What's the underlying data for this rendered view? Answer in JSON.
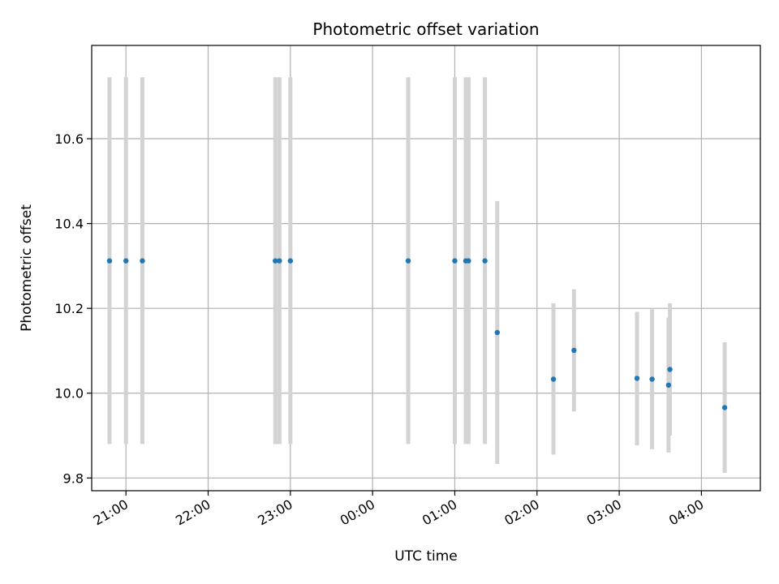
{
  "chart_data": {
    "type": "scatter",
    "title": "Photometric offset variation",
    "xlabel": "UTC time",
    "ylabel": "Photometric offset",
    "x_tick_labels": [
      "21:00",
      "22:00",
      "23:00",
      "00:00",
      "01:00",
      "02:00",
      "03:00",
      "04:00"
    ],
    "y_tick_labels": [
      "9.8",
      "10.0",
      "10.2",
      "10.4",
      "10.6"
    ],
    "xlim": [
      "20:35",
      "04:43"
    ],
    "ylim": [
      9.77,
      10.82
    ],
    "grid": true,
    "colors": {
      "point": "#1f77b4",
      "errorbar": "#d3d3d3",
      "grid": "#b0b0b0"
    },
    "points": [
      {
        "x": "20:48",
        "y": 10.312,
        "err_low": 9.88,
        "err_high": 10.745
      },
      {
        "x": "21:00",
        "y": 10.312,
        "err_low": 9.88,
        "err_high": 10.745
      },
      {
        "x": "21:12",
        "y": 10.312,
        "err_low": 9.88,
        "err_high": 10.745
      },
      {
        "x": "22:49",
        "y": 10.312,
        "err_low": 9.88,
        "err_high": 10.745
      },
      {
        "x": "22:52",
        "y": 10.312,
        "err_low": 9.88,
        "err_high": 10.745
      },
      {
        "x": "23:00",
        "y": 10.312,
        "err_low": 9.88,
        "err_high": 10.745
      },
      {
        "x": "00:26",
        "y": 10.312,
        "err_low": 9.88,
        "err_high": 10.745
      },
      {
        "x": "01:00",
        "y": 10.312,
        "err_low": 9.88,
        "err_high": 10.745
      },
      {
        "x": "01:08",
        "y": 10.312,
        "err_low": 9.88,
        "err_high": 10.745
      },
      {
        "x": "01:10",
        "y": 10.312,
        "err_low": 9.88,
        "err_high": 10.745
      },
      {
        "x": "01:22",
        "y": 10.312,
        "err_low": 9.88,
        "err_high": 10.745
      },
      {
        "x": "01:31",
        "y": 10.143,
        "err_low": 9.833,
        "err_high": 10.453
      },
      {
        "x": "02:12",
        "y": 10.033,
        "err_low": 9.855,
        "err_high": 10.212
      },
      {
        "x": "02:27",
        "y": 10.101,
        "err_low": 9.957,
        "err_high": 10.245
      },
      {
        "x": "03:13",
        "y": 10.035,
        "err_low": 9.877,
        "err_high": 10.192
      },
      {
        "x": "03:24",
        "y": 10.033,
        "err_low": 9.868,
        "err_high": 10.198
      },
      {
        "x": "03:36",
        "y": 10.019,
        "err_low": 9.86,
        "err_high": 10.178
      },
      {
        "x": "03:37",
        "y": 10.056,
        "err_low": 9.9,
        "err_high": 10.212
      },
      {
        "x": "04:17",
        "y": 9.966,
        "err_low": 9.812,
        "err_high": 10.12
      }
    ]
  }
}
